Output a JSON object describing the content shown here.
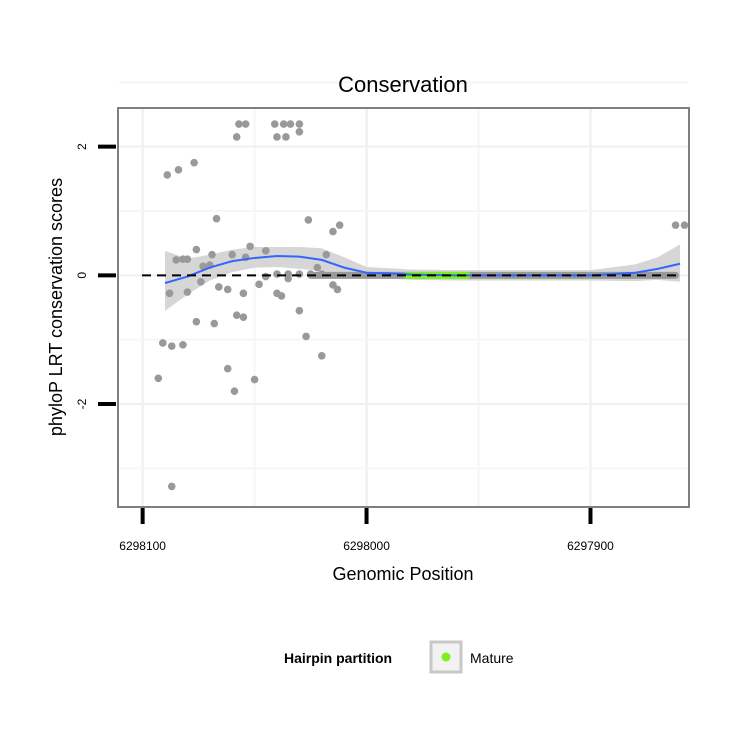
{
  "chart_data": {
    "type": "scatter",
    "title": "Conservation",
    "xlabel": "Genomic Position",
    "ylabel": "phyloP LRT conservation scores",
    "x_reversed": true,
    "xlim": [
      6298111,
      6297856
    ],
    "ylim": [
      -3.6,
      2.6
    ],
    "x_ticks": [
      6298100,
      6298000,
      6297900
    ],
    "x_tick_labels": [
      "6298100",
      "6298000",
      "6297900"
    ],
    "y_ticks": [
      2,
      0,
      -2
    ],
    "y_tick_labels": [
      "2",
      "0",
      "-2"
    ],
    "reference_line": {
      "y": 0,
      "style": "dashed"
    },
    "legend": {
      "title": "Hairpin partition",
      "entries": [
        {
          "label": "Mature",
          "color": "#7cf01e"
        }
      ]
    },
    "colors": {
      "points": "#999999",
      "smooth": "#3366ff",
      "ribbon": "#cccccc",
      "mature": "#7cf01e",
      "panel_border": "#7f7f7f"
    },
    "points": [
      [
        6298089,
        1.56
      ],
      [
        6298084,
        1.64
      ],
      [
        6298077,
        1.75
      ],
      [
        6298067,
        0.88
      ],
      [
        6298057,
        2.35
      ],
      [
        6298054,
        2.35
      ],
      [
        6298058,
        2.15
      ],
      [
        6298041,
        2.35
      ],
      [
        6298037,
        2.35
      ],
      [
        6298034,
        2.35
      ],
      [
        6298030,
        2.35
      ],
      [
        6298040,
        2.15
      ],
      [
        6298036,
        2.15
      ],
      [
        6298030,
        2.23
      ],
      [
        6298026,
        0.86
      ],
      [
        6298015,
        0.68
      ],
      [
        6298012,
        0.78
      ],
      [
        6298085,
        0.24
      ],
      [
        6298082,
        0.25
      ],
      [
        6298080,
        0.25
      ],
      [
        6298076,
        0.4
      ],
      [
        6298069,
        0.32
      ],
      [
        6298060,
        0.32
      ],
      [
        6298054,
        0.28
      ],
      [
        6298052,
        0.45
      ],
      [
        6298045,
        0.38
      ],
      [
        6298073,
        0.14
      ],
      [
        6298070,
        0.16
      ],
      [
        6298074,
        -0.1
      ],
      [
        6298066,
        -0.18
      ],
      [
        6298062,
        -0.22
      ],
      [
        6298055,
        -0.28
      ],
      [
        6298048,
        -0.14
      ],
      [
        6298045,
        -0.02
      ],
      [
        6298040,
        -0.28
      ],
      [
        6298038,
        -0.32
      ],
      [
        6298088,
        -0.28
      ],
      [
        6298080,
        -0.26
      ],
      [
        6298076,
        -0.72
      ],
      [
        6298068,
        -0.75
      ],
      [
        6298058,
        -0.62
      ],
      [
        6298055,
        -0.65
      ],
      [
        6298035,
        -0.05
      ],
      [
        6298030,
        -0.55
      ],
      [
        6298022,
        0.12
      ],
      [
        6298018,
        0.32
      ],
      [
        6298015,
        -0.15
      ],
      [
        6298013,
        -0.22
      ],
      [
        6298027,
        -0.95
      ],
      [
        6298020,
        -1.25
      ],
      [
        6298040,
        0.02
      ],
      [
        6298035,
        0.02
      ],
      [
        6298030,
        0.02
      ],
      [
        6298025,
        0.02
      ],
      [
        6298020,
        0.02
      ],
      [
        6298091,
        -1.05
      ],
      [
        6298087,
        -1.1
      ],
      [
        6298082,
        -1.08
      ],
      [
        6298093,
        -1.6
      ],
      [
        6298062,
        -1.45
      ],
      [
        6298059,
        -1.8
      ],
      [
        6298050,
        -1.62
      ],
      [
        6298087,
        -3.28
      ],
      [
        6297862,
        0.78
      ],
      [
        6297858,
        0.78
      ]
    ],
    "smooth_line": [
      [
        6298090,
        -0.12
      ],
      [
        6298080,
        -0.02
      ],
      [
        6298070,
        0.12
      ],
      [
        6298060,
        0.22
      ],
      [
        6298050,
        0.27
      ],
      [
        6298040,
        0.3
      ],
      [
        6298030,
        0.29
      ],
      [
        6298020,
        0.24
      ],
      [
        6298010,
        0.12
      ],
      [
        6298000,
        0.04
      ],
      [
        6297990,
        0.03
      ],
      [
        6297980,
        0.01
      ],
      [
        6297960,
        0.0
      ],
      [
        6297940,
        0.0
      ],
      [
        6297920,
        0.0
      ],
      [
        6297900,
        0.0
      ],
      [
        6297880,
        0.04
      ],
      [
        6297870,
        0.1
      ],
      [
        6297860,
        0.18
      ]
    ],
    "ribbon": [
      [
        6298090,
        -0.55,
        0.38
      ],
      [
        6298080,
        -0.3,
        0.26
      ],
      [
        6298070,
        -0.08,
        0.32
      ],
      [
        6298060,
        0.05,
        0.4
      ],
      [
        6298050,
        0.12,
        0.44
      ],
      [
        6298040,
        0.13,
        0.44
      ],
      [
        6298030,
        0.1,
        0.44
      ],
      [
        6298020,
        0.07,
        0.42
      ],
      [
        6298010,
        -0.04,
        0.28
      ],
      [
        6298000,
        -0.05,
        0.13
      ],
      [
        6297990,
        -0.05,
        0.11
      ],
      [
        6297980,
        -0.07,
        0.09
      ],
      [
        6297960,
        -0.08,
        0.08
      ],
      [
        6297940,
        -0.08,
        0.08
      ],
      [
        6297920,
        -0.08,
        0.08
      ],
      [
        6297900,
        -0.08,
        0.08
      ],
      [
        6297880,
        -0.09,
        0.17
      ],
      [
        6297870,
        -0.07,
        0.28
      ],
      [
        6297860,
        -0.1,
        0.48
      ]
    ],
    "mature_segment": [
      6297982,
      6297955
    ]
  }
}
